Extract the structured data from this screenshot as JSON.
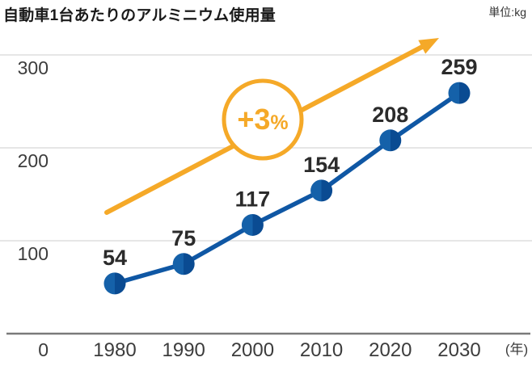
{
  "header": {
    "title": "自動車1台あたりのアルミニウム使用量",
    "unit": "単位:kg"
  },
  "chart_data": {
    "type": "line",
    "title": "自動車1台あたりのアルミニウム使用量",
    "unit_label": "単位:kg",
    "categories": [
      "1980",
      "1990",
      "2000",
      "2010",
      "2020",
      "2030"
    ],
    "values": [
      54,
      75,
      117,
      154,
      208,
      259
    ],
    "x_axis_suffix": "(年)",
    "yticks": [
      0,
      100,
      200,
      300
    ],
    "ylim": [
      0,
      320
    ],
    "grid": true,
    "annotation": {
      "text_main": "+3",
      "text_sub": "%"
    },
    "colors": {
      "line": "#0f57a4",
      "point_left": "#1561a9",
      "point_right": "#0a4b92",
      "arrow": "#f5a928",
      "value_label": "#2b2b2b",
      "tick_label": "#3c3c3c",
      "grid": "#d8d8d8",
      "axis": "#7a7a7a",
      "badge_fill": "#ffffff"
    }
  }
}
